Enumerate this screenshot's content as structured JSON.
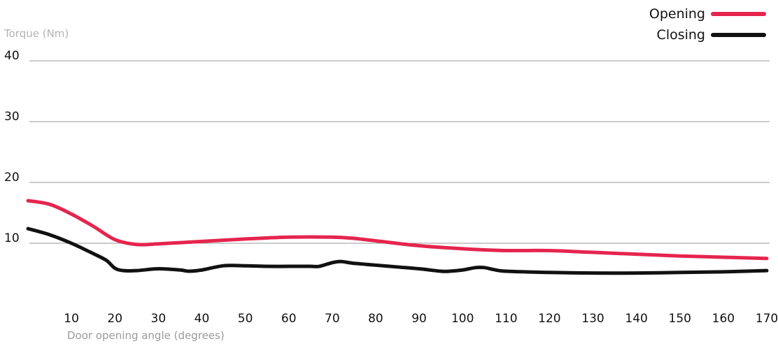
{
  "chart_data": {
    "type": "line",
    "title": "",
    "ylabel": "Torque (Nm)",
    "xlabel": "Door opening angle (degrees)",
    "xlim": [
      0,
      170
    ],
    "ylim": [
      0,
      40
    ],
    "yticks": [
      10,
      20,
      30,
      40
    ],
    "xticks": [
      10,
      20,
      30,
      40,
      50,
      60,
      70,
      80,
      90,
      100,
      110,
      120,
      130,
      140,
      150,
      160,
      170
    ],
    "grid": true,
    "legend_position": "top-right",
    "series": [
      {
        "name": "Opening",
        "color": "#e5254e",
        "x": [
          0,
          5,
          10,
          15,
          20,
          25,
          30,
          40,
          50,
          60,
          70,
          75,
          80,
          90,
          100,
          110,
          120,
          130,
          140,
          150,
          160,
          170
        ],
        "y": [
          17.0,
          16.4,
          14.8,
          12.8,
          10.6,
          9.8,
          9.9,
          10.3,
          10.7,
          11.0,
          11.0,
          10.8,
          10.4,
          9.6,
          9.1,
          8.8,
          8.8,
          8.5,
          8.2,
          7.9,
          7.7,
          7.5
        ]
      },
      {
        "name": "Closing",
        "color": "#111111",
        "x": [
          0,
          5,
          10,
          15,
          18,
          20,
          22,
          25,
          30,
          35,
          37,
          40,
          45,
          50,
          55,
          60,
          65,
          67,
          70,
          72,
          75,
          80,
          85,
          90,
          95,
          97,
          100,
          103,
          105,
          107,
          110,
          120,
          130,
          140,
          150,
          160,
          170
        ],
        "y": [
          12.4,
          11.4,
          10.0,
          8.3,
          7.2,
          5.9,
          5.5,
          5.5,
          5.8,
          5.6,
          5.4,
          5.6,
          6.3,
          6.3,
          6.2,
          6.2,
          6.2,
          6.2,
          6.8,
          7.0,
          6.7,
          6.4,
          6.1,
          5.8,
          5.4,
          5.4,
          5.6,
          6.0,
          6.0,
          5.7,
          5.4,
          5.2,
          5.1,
          5.1,
          5.2,
          5.3,
          5.5
        ]
      }
    ]
  }
}
